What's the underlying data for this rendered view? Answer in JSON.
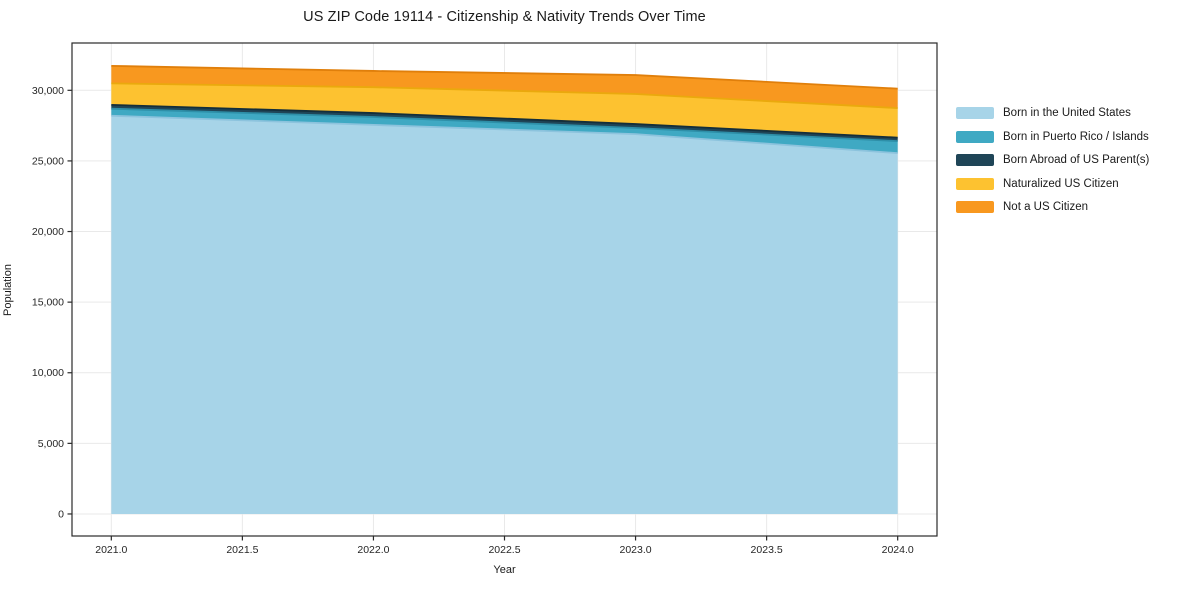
{
  "figure": {
    "title": "US ZIP Code 19114 - Citizenship & Nativity Trends Over Time",
    "xlabel": "Year",
    "ylabel": "Population"
  },
  "chart_data": {
    "type": "area",
    "stacked": true,
    "title": "US ZIP Code 19114 - Citizenship & Nativity Trends Over Time",
    "xlabel": "Year",
    "ylabel": "Population",
    "x": [
      2021,
      2022,
      2023,
      2024
    ],
    "series": [
      {
        "name": "Born in the United States",
        "color": "#a7d4e8",
        "edge_color": "#8cc3dd",
        "values": [
          28200,
          27550,
          26900,
          25550
        ]
      },
      {
        "name": "Born in Puerto Rico / Islands",
        "color": "#3fa9c3",
        "edge_color": "#2e8fa8",
        "values": [
          500,
          560,
          430,
          850
        ]
      },
      {
        "name": "Born Abroad of US Parent(s)",
        "color": "#1f4557",
        "edge_color": "#142e3b",
        "values": [
          270,
          280,
          280,
          250
        ]
      },
      {
        "name": "Naturalized US Citizen",
        "color": "#fdc230",
        "edge_color": "#eaa90d",
        "values": [
          1520,
          1830,
          2130,
          2090
        ]
      },
      {
        "name": "Not a US Citizen",
        "color": "#f8981f",
        "edge_color": "#e07f0b",
        "values": [
          1240,
          1150,
          1340,
          1380
        ]
      }
    ],
    "totals": [
      31730,
      31370,
      31080,
      30120
    ],
    "xlim": [
      2020.85,
      2024.15
    ],
    "ylim": [
      -1560,
      33350
    ],
    "xticks": [
      2021.0,
      2021.5,
      2022.0,
      2022.5,
      2023.0,
      2023.5,
      2024.0
    ],
    "yticks": [
      0,
      5000,
      10000,
      15000,
      20000,
      25000,
      30000
    ],
    "grid": true,
    "legend_position": "outside-right"
  },
  "style": {
    "text_color": "#262626",
    "spine_color": "#2a2a2a",
    "grid_color": "#e9e9e9",
    "background": "#ffffff"
  }
}
